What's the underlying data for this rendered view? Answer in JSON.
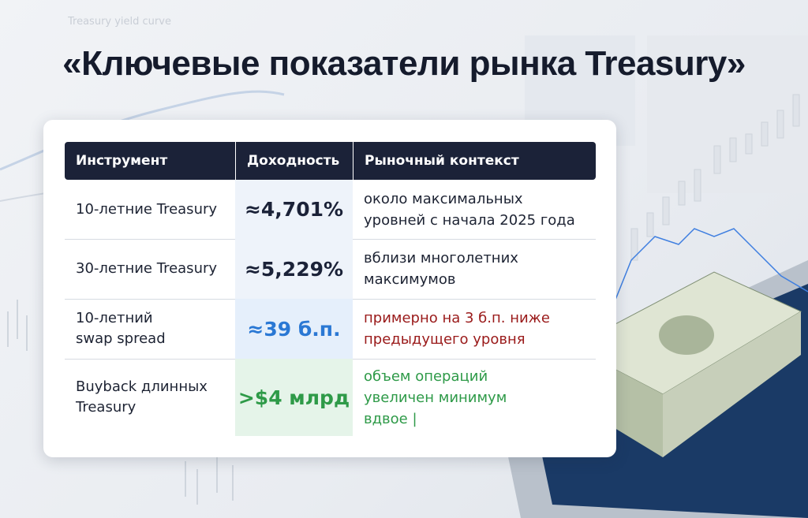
{
  "background_label": "Treasury yield curve",
  "header": {
    "title": "«Ключевые показатели рынка Treasury»"
  },
  "table": {
    "headers": [
      "Инструмент",
      "Доходность",
      "Рыночный контекст"
    ],
    "rows": [
      {
        "instrument": [
          "10-летние Treasury"
        ],
        "yield": "≈4,701%",
        "context": [
          "около максимальных",
          "уровней с начала 2025 года"
        ]
      },
      {
        "instrument": [
          "30-летние Treasury"
        ],
        "yield": "≈5,229%",
        "context": [
          "вблизи многолетних",
          "максимумов"
        ]
      },
      {
        "instrument": [
          "10-летний",
          "swap spread"
        ],
        "yield": "≈39 б.п.",
        "context": [
          "примерно на 3 б.п. ниже",
          "предыдущего уровня"
        ]
      },
      {
        "instrument": [
          "Buyback длинных",
          "Treasury"
        ],
        "yield": ">$4 млрд",
        "context": [
          "объем операций",
          "увеличен минимум",
          "вдвое |"
        ]
      }
    ]
  }
}
